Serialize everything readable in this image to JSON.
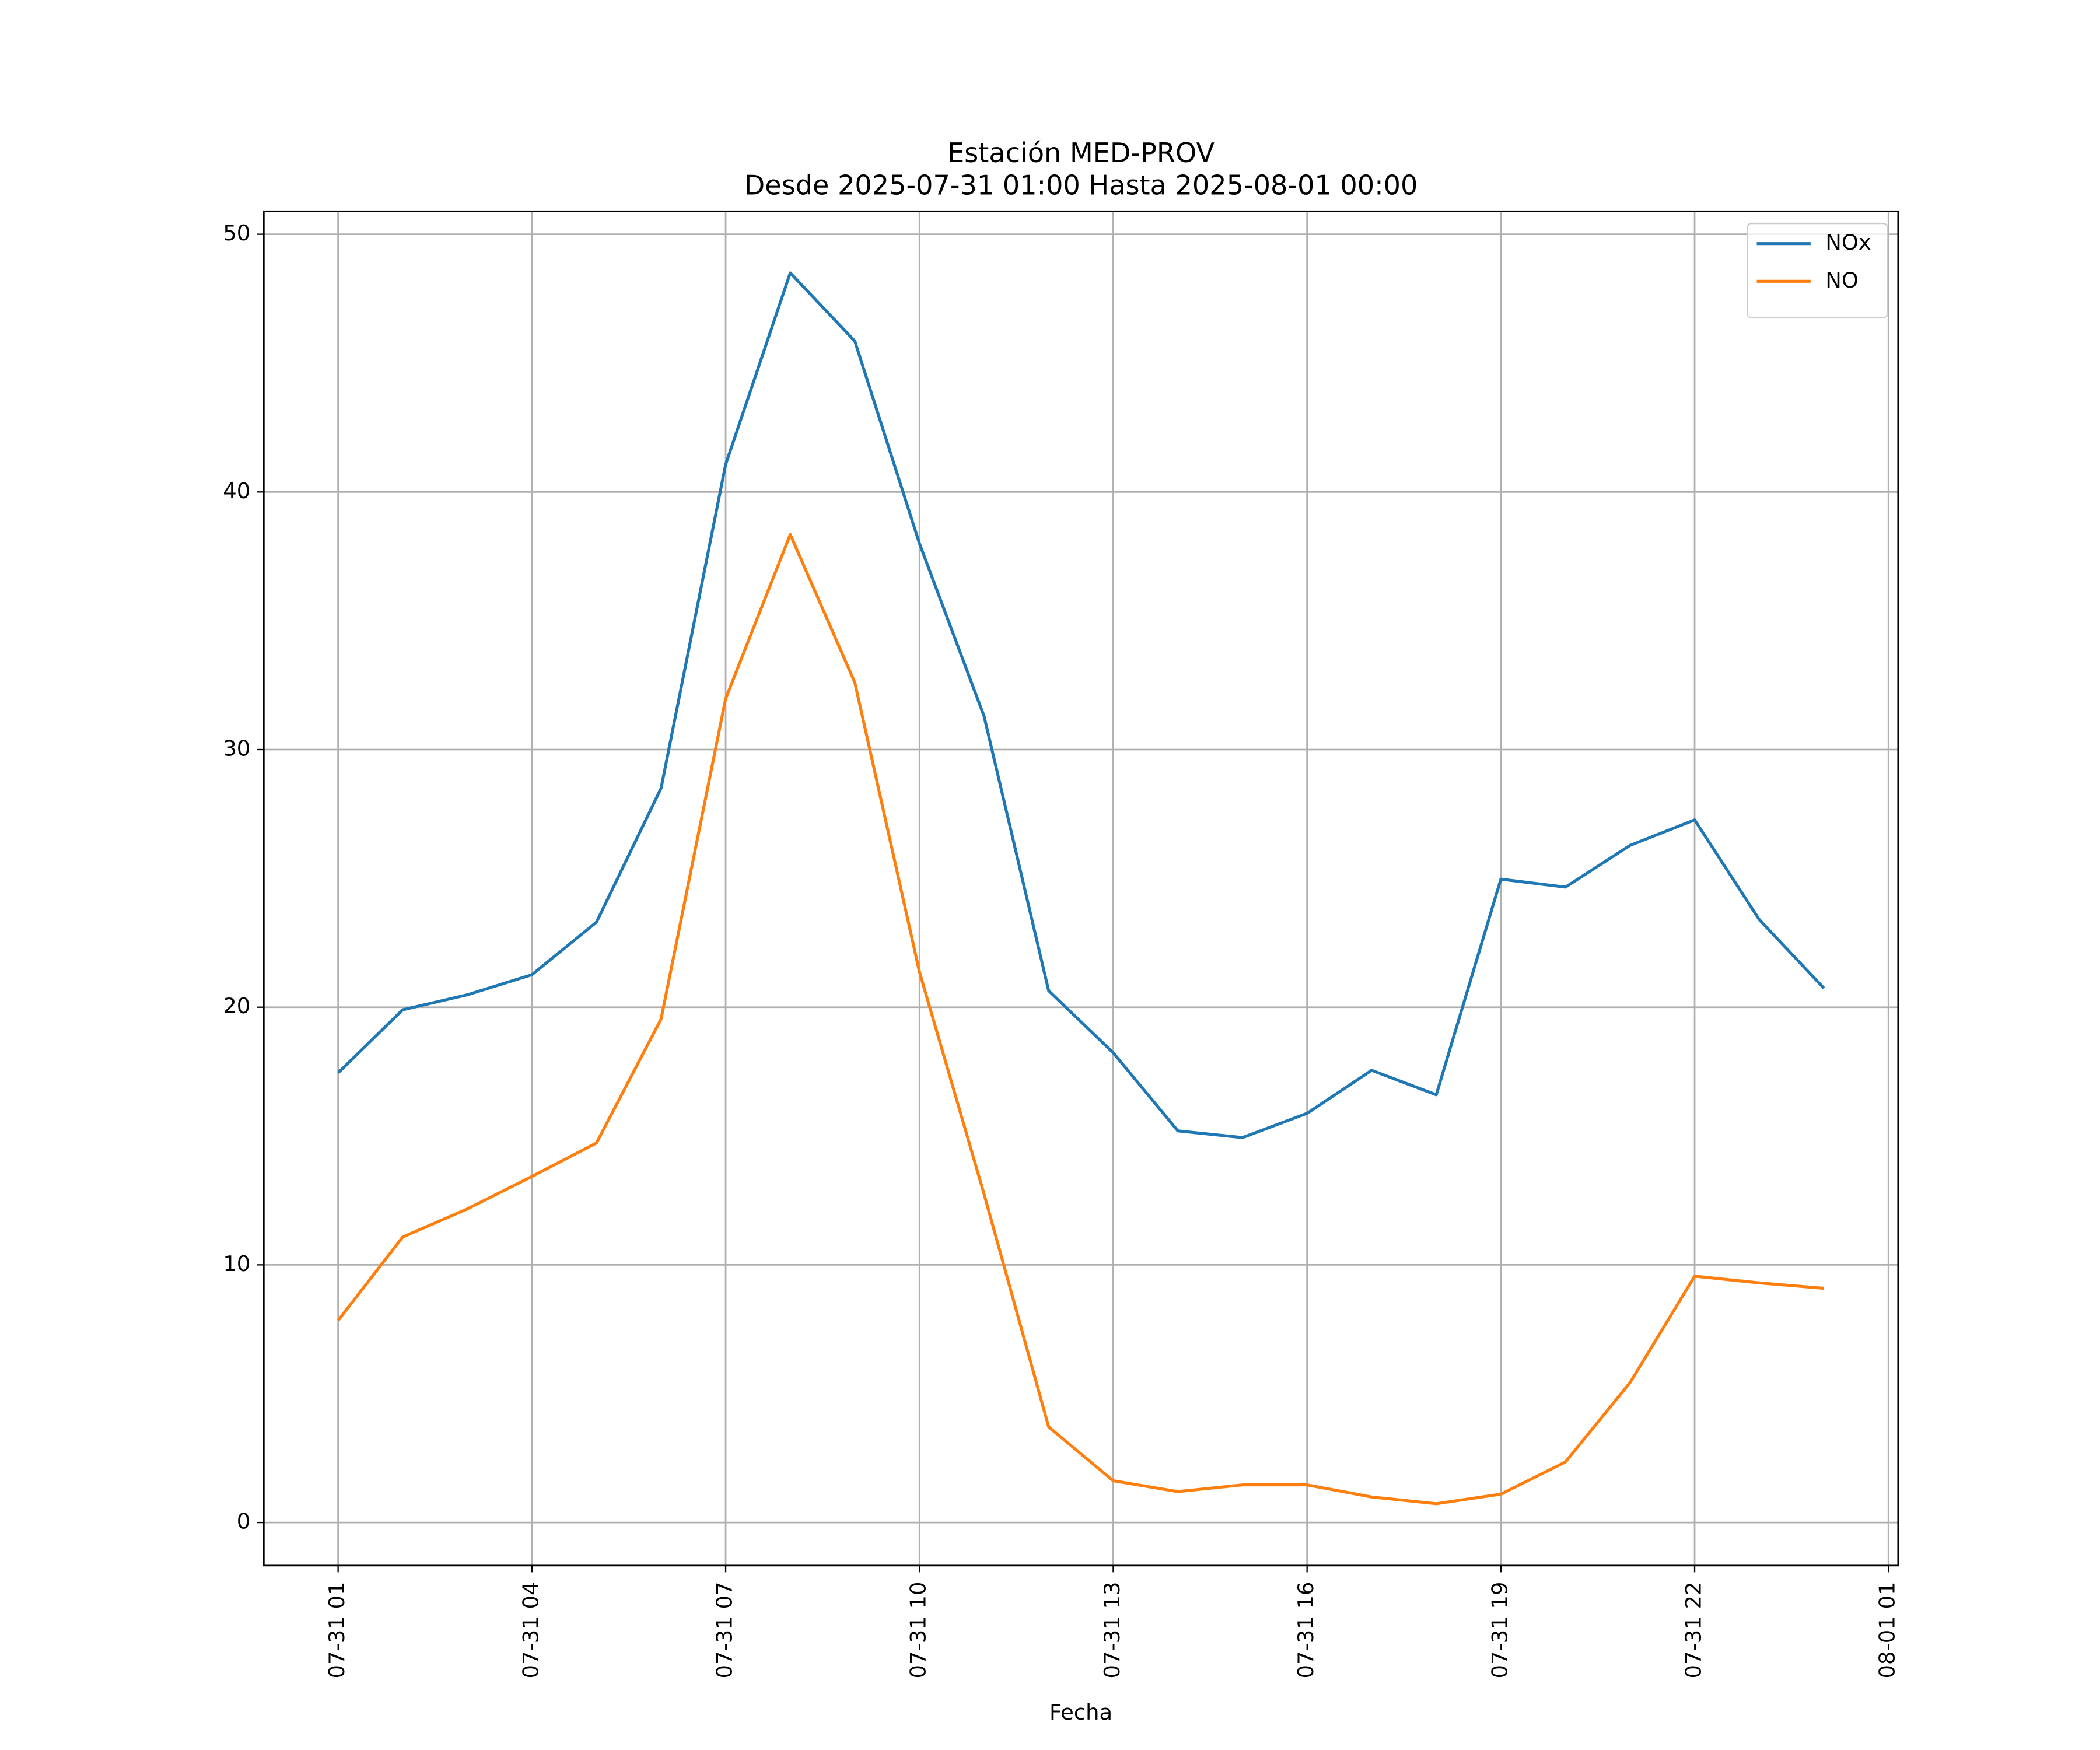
{
  "chart_data": {
    "type": "line",
    "title": "Estación MED-PROV",
    "subtitle": "Desde 2025-07-31 01:00 Hasta 2025-08-01 00:00",
    "x_label": "Fecha",
    "x": [
      "07-31 01",
      "07-31 02",
      "07-31 03",
      "07-31 04",
      "07-31 05",
      "07-31 06",
      "07-31 07",
      "07-31 08",
      "07-31 09",
      "07-31 10",
      "07-31 11",
      "07-31 12",
      "07-31 13",
      "07-31 14",
      "07-31 15",
      "07-31 16",
      "07-31 17",
      "07-31 18",
      "07-31 19",
      "07-31 20",
      "07-31 21",
      "07-31 22",
      "07-31 23",
      "08-01 00"
    ],
    "series": [
      {
        "name": "NOx",
        "color": "#1f77b4",
        "values": [
          17.45,
          19.9,
          20.48,
          21.26,
          23.3,
          28.5,
          41.07,
          48.5,
          45.85,
          38.0,
          31.3,
          20.64,
          18.23,
          15.2,
          14.94,
          15.88,
          17.55,
          16.6,
          24.97,
          24.66,
          26.28,
          27.27,
          23.4,
          20.74
        ]
      },
      {
        "name": "NO",
        "color": "#ff7f0e",
        "values": [
          7.84,
          11.08,
          12.17,
          13.43,
          14.73,
          19.54,
          31.98,
          38.35,
          32.6,
          21.37,
          12.75,
          3.71,
          1.62,
          1.2,
          1.46,
          1.46,
          0.99,
          0.73,
          1.1,
          2.35,
          5.43,
          9.56,
          9.3,
          9.09
        ]
      }
    ],
    "xlim": [
      "07-30 23:51",
      "08-01 01:09"
    ],
    "xticks": [
      "07-31 01",
      "07-31 04",
      "07-31 07",
      "07-31 10",
      "07-31 13",
      "07-31 16",
      "07-31 19",
      "07-31 22",
      "08-01 01"
    ],
    "ylim": [
      -1.67,
      50.89
    ],
    "yticks": [
      0,
      10,
      20,
      30,
      40,
      50
    ],
    "grid": true,
    "legend": "upper right"
  }
}
